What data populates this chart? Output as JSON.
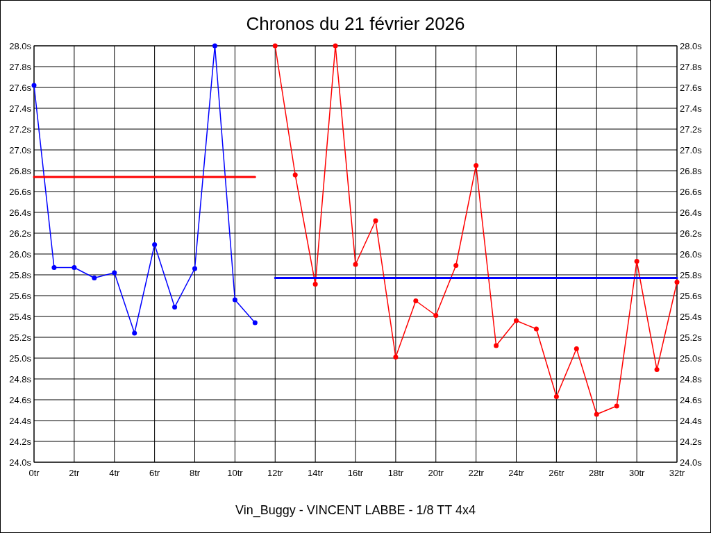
{
  "chart_data": {
    "type": "line",
    "title": "Chronos du 21 février 2026",
    "xlabel": "Vin_Buggy - VINCENT LABBE - 1/8 TT 4x4",
    "xlim": [
      0,
      32
    ],
    "xticks": [
      {
        "value": 0,
        "label": "0tr"
      },
      {
        "value": 2,
        "label": "2tr"
      },
      {
        "value": 4,
        "label": "4tr"
      },
      {
        "value": 6,
        "label": "6tr"
      },
      {
        "value": 8,
        "label": "8tr"
      },
      {
        "value": 10,
        "label": "10tr"
      },
      {
        "value": 12,
        "label": "12tr"
      },
      {
        "value": 14,
        "label": "14tr"
      },
      {
        "value": 16,
        "label": "16tr"
      },
      {
        "value": 18,
        "label": "18tr"
      },
      {
        "value": 20,
        "label": "20tr"
      },
      {
        "value": 22,
        "label": "22tr"
      },
      {
        "value": 24,
        "label": "24tr"
      },
      {
        "value": 26,
        "label": "26tr"
      },
      {
        "value": 28,
        "label": "28tr"
      },
      {
        "value": 30,
        "label": "30tr"
      },
      {
        "value": 32,
        "label": "32tr"
      }
    ],
    "ylim": [
      24,
      28
    ],
    "yticks": [
      {
        "value": 24,
        "label": "24.0s"
      },
      {
        "value": 24.2,
        "label": "24.2s"
      },
      {
        "value": 24.4,
        "label": "24.4s"
      },
      {
        "value": 24.6,
        "label": "24.6s"
      },
      {
        "value": 24.8,
        "label": "24.8s"
      },
      {
        "value": 25,
        "label": "25.0s"
      },
      {
        "value": 25.2,
        "label": "25.2s"
      },
      {
        "value": 25.4,
        "label": "25.4s"
      },
      {
        "value": 25.6,
        "label": "25.6s"
      },
      {
        "value": 25.8,
        "label": "25.8s"
      },
      {
        "value": 26,
        "label": "26.0s"
      },
      {
        "value": 26.2,
        "label": "26.2s"
      },
      {
        "value": 26.4,
        "label": "26.4s"
      },
      {
        "value": 26.6,
        "label": "26.6s"
      },
      {
        "value": 26.8,
        "label": "26.8s"
      },
      {
        "value": 27,
        "label": "27.0s"
      },
      {
        "value": 27.2,
        "label": "27.2s"
      },
      {
        "value": 27.4,
        "label": "27.4s"
      },
      {
        "value": 27.6,
        "label": "27.6s"
      },
      {
        "value": 27.8,
        "label": "27.8s"
      },
      {
        "value": 28,
        "label": "28.0s"
      }
    ],
    "y2lim": [
      24,
      28
    ],
    "y2ticks": [
      {
        "value": 24,
        "label": "24.0s"
      },
      {
        "value": 24.2,
        "label": "24.2s"
      },
      {
        "value": 24.4,
        "label": "24.4s"
      },
      {
        "value": 24.6,
        "label": "24.6s"
      },
      {
        "value": 24.8,
        "label": "24.8s"
      },
      {
        "value": 25,
        "label": "25.0s"
      },
      {
        "value": 25.2,
        "label": "25.2s"
      },
      {
        "value": 25.4,
        "label": "25.4s"
      },
      {
        "value": 25.6,
        "label": "25.6s"
      },
      {
        "value": 25.8,
        "label": "25.8s"
      },
      {
        "value": 26,
        "label": "26.0s"
      },
      {
        "value": 26.2,
        "label": "26.2s"
      },
      {
        "value": 26.4,
        "label": "26.4s"
      },
      {
        "value": 26.6,
        "label": "26.6s"
      },
      {
        "value": 26.8,
        "label": "26.8s"
      },
      {
        "value": 27,
        "label": "27.0s"
      },
      {
        "value": 27.2,
        "label": "27.2s"
      },
      {
        "value": 27.4,
        "label": "27.4s"
      },
      {
        "value": 27.6,
        "label": "27.6s"
      },
      {
        "value": 27.8,
        "label": "27.8s"
      },
      {
        "value": 28,
        "label": "28.0s"
      }
    ],
    "grid": true,
    "marker": "circle",
    "line_style": "solid",
    "series": [
      {
        "color": "#0000ff",
        "x": [
          0,
          1,
          2,
          3,
          4,
          5,
          6,
          7,
          8,
          9,
          10,
          11
        ],
        "values": [
          27.62,
          25.87,
          25.87,
          25.77,
          25.82,
          25.24,
          26.09,
          25.49,
          25.86,
          28.0,
          25.56,
          25.34
        ]
      },
      {
        "color": "#ff0000",
        "x": [
          12,
          13,
          14,
          15,
          16,
          17,
          18,
          19,
          20,
          21,
          22,
          23,
          24,
          25,
          26,
          27,
          28,
          29,
          30,
          31,
          32
        ],
        "values": [
          28.0,
          26.76,
          25.71,
          28.0,
          25.9,
          26.32,
          25.01,
          25.55,
          25.41,
          25.89,
          26.85,
          25.12,
          25.36,
          25.28,
          24.63,
          25.09,
          24.46,
          24.54,
          25.93,
          24.89,
          25.73
        ]
      },
      {
        "color": "#ff0000",
        "marker": "none",
        "x": [
          0,
          11
        ],
        "values": [
          26.74,
          26.74
        ]
      },
      {
        "color": "#0000ff",
        "marker": "none",
        "x": [
          12,
          32
        ],
        "values": [
          25.77,
          25.77
        ]
      }
    ]
  }
}
